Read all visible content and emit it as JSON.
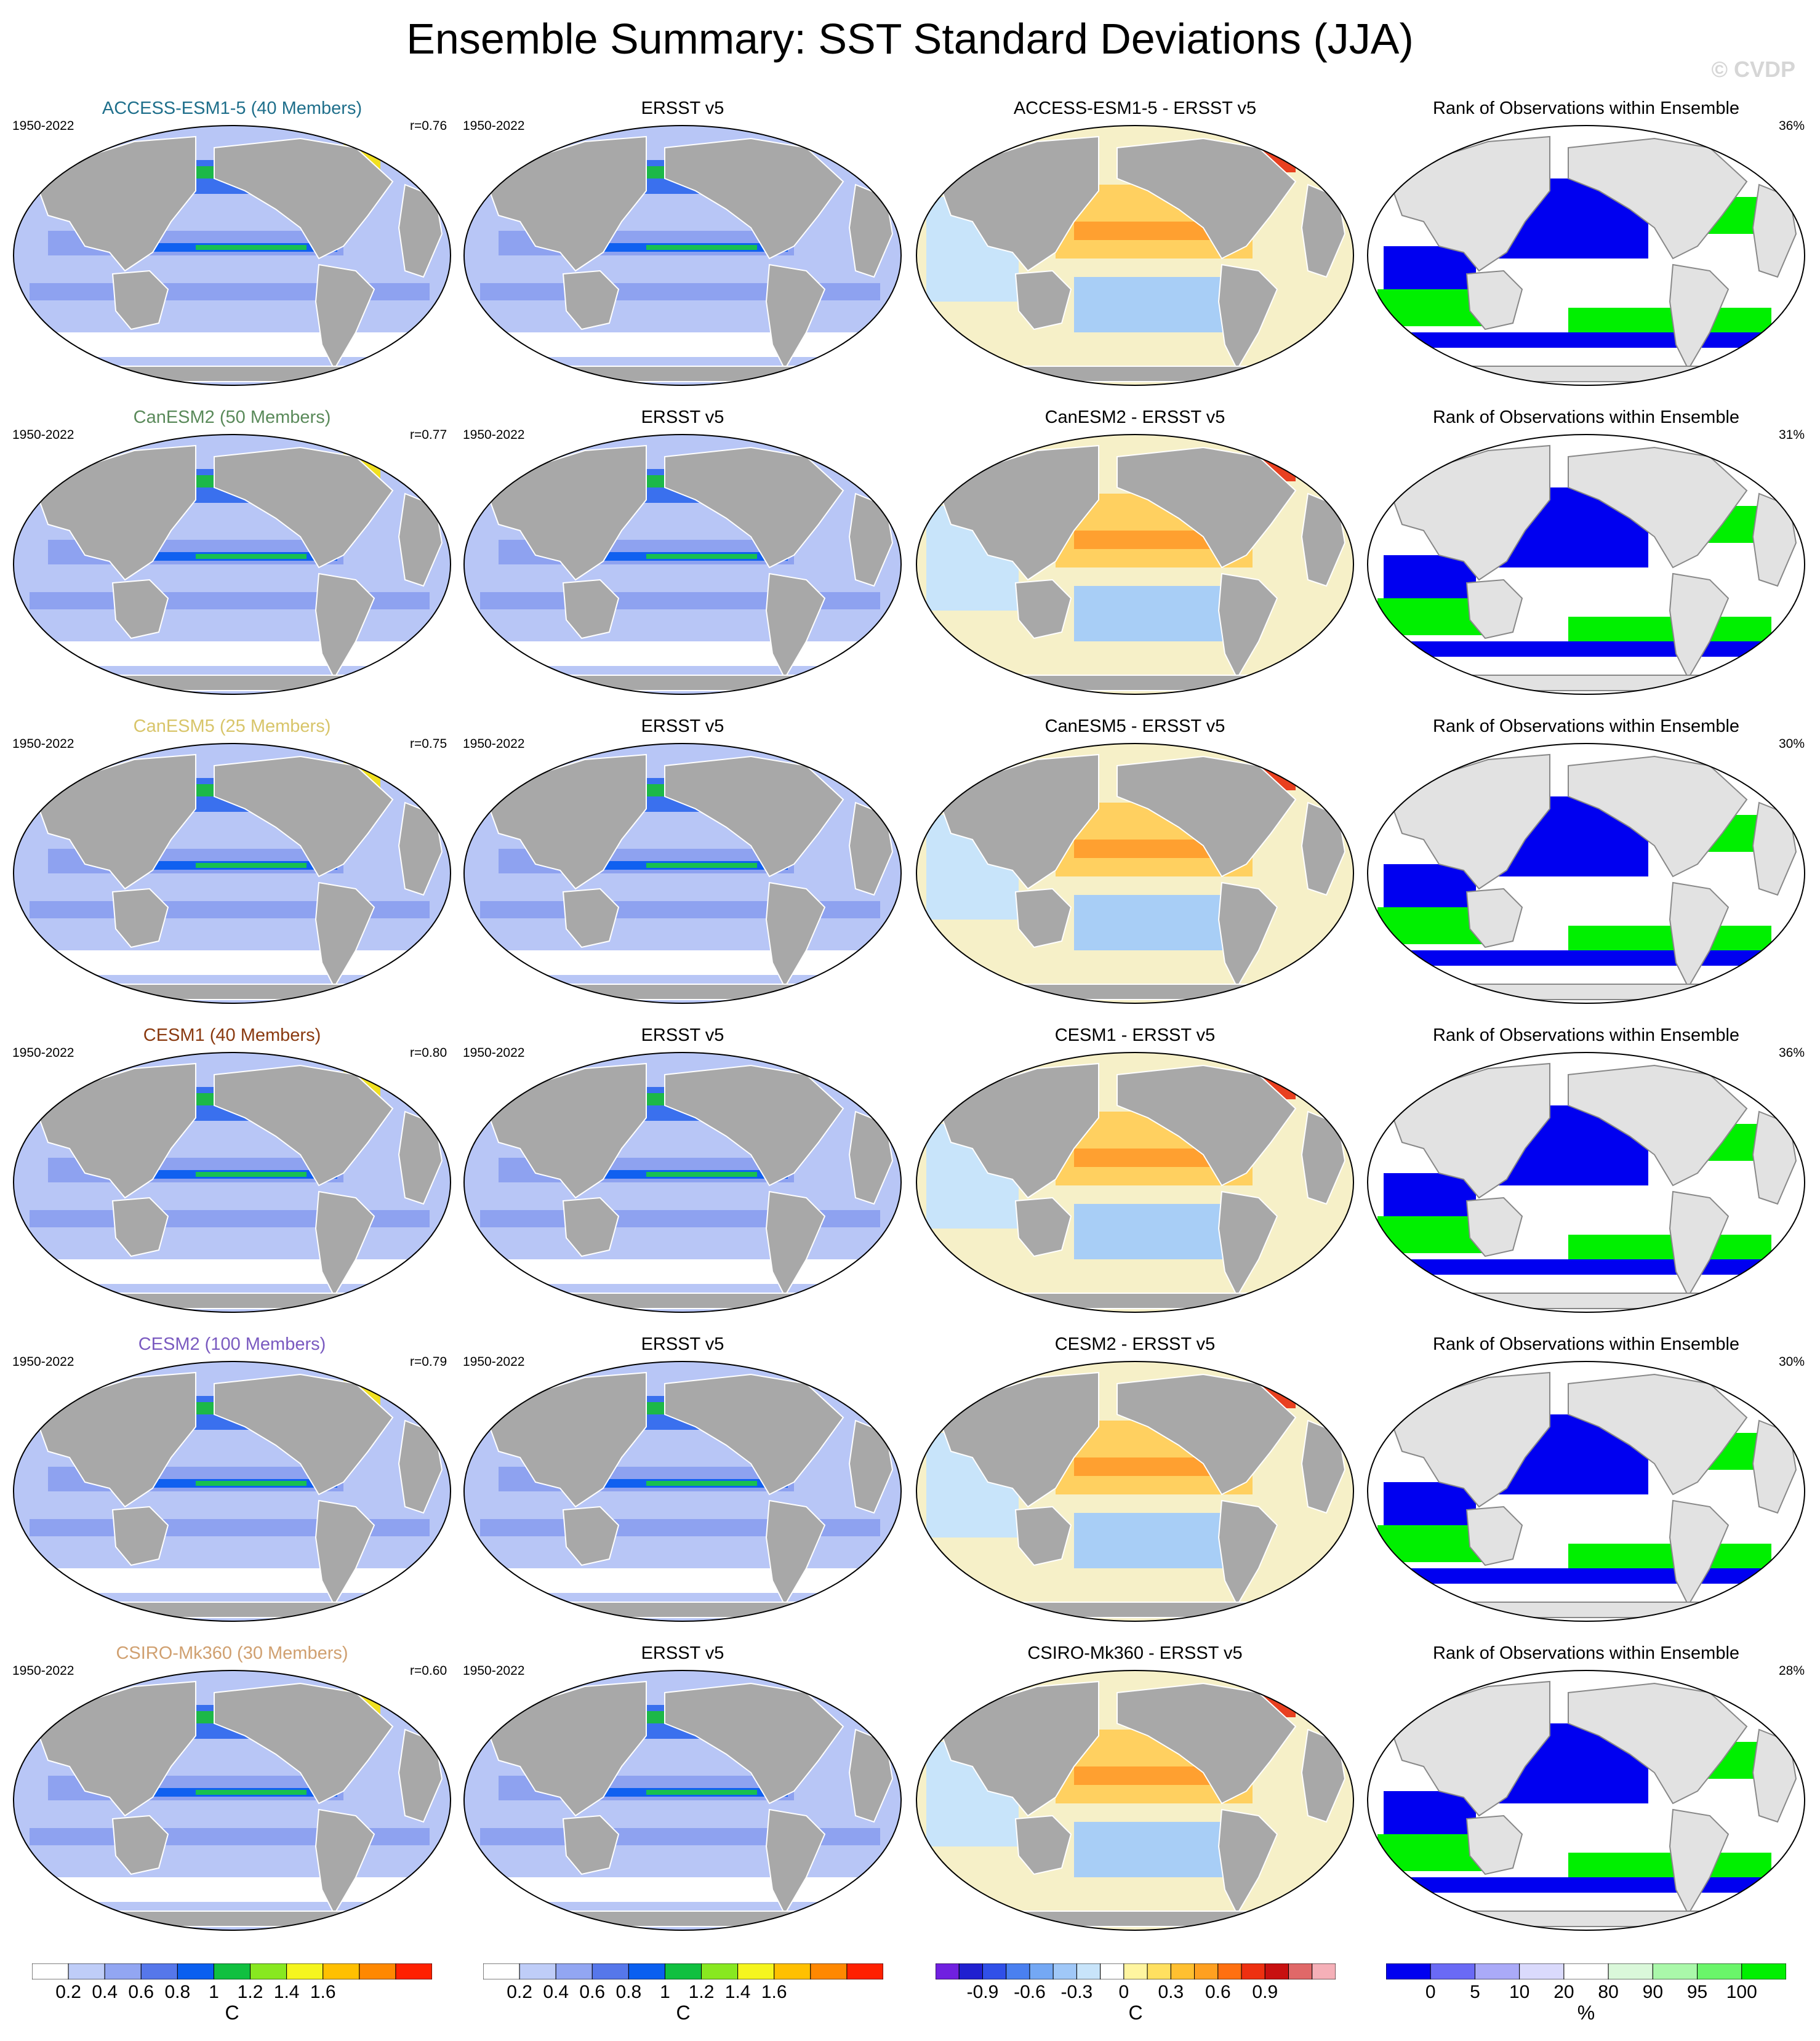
{
  "title": "Ensemble Summary: SST Standard Deviations (JJA)",
  "watermark": "© CVDP",
  "period": "1950-2022",
  "obs_name": "ERSST v5",
  "rank_title": "Rank of Observations within Ensemble",
  "rows": [
    {
      "model_title": "ACCESS-ESM1-5 (40 Members)",
      "model_color": "#1f6f8b",
      "corr": "r=0.76",
      "diff_title": "ACCESS-ESM1-5 - ERSST v5",
      "rank_pct": "36%"
    },
    {
      "model_title": "CanESM2 (50 Members)",
      "model_color": "#5a8a5a",
      "corr": "r=0.77",
      "diff_title": "CanESM2 - ERSST v5",
      "rank_pct": "31%"
    },
    {
      "model_title": "CanESM5 (25 Members)",
      "model_color": "#d8c56a",
      "corr": "r=0.75",
      "diff_title": "CanESM5 - ERSST v5",
      "rank_pct": "30%"
    },
    {
      "model_title": "CESM1 (40 Members)",
      "model_color": "#8a3a10",
      "corr": "r=0.80",
      "diff_title": "CESM1 - ERSST v5",
      "rank_pct": "36%"
    },
    {
      "model_title": "CESM2 (100 Members)",
      "model_color": "#7a5ac0",
      "corr": "r=0.79",
      "diff_title": "CESM2 - ERSST v5",
      "rank_pct": "30%"
    },
    {
      "model_title": "CSIRO-Mk360 (30 Members)",
      "model_color": "#d0a070",
      "corr": "r=0.60",
      "diff_title": "CSIRO-Mk360 - ERSST v5",
      "rank_pct": "28%"
    }
  ],
  "colorbars": {
    "sd": {
      "colors": [
        "#ffffff",
        "#bfcdf8",
        "#92a6f2",
        "#5677ea",
        "#0a5ff0",
        "#10c040",
        "#88e820",
        "#f5f51e",
        "#ffc000",
        "#ff8800",
        "#ff2000"
      ],
      "labels": [
        "0.2",
        "0.4",
        "0.6",
        "0.8",
        "1",
        "1.2",
        "1.4",
        "1.6"
      ],
      "unit": "C"
    },
    "diff": {
      "colors": [
        "#7020e0",
        "#2020d0",
        "#3050e8",
        "#4a80f0",
        "#74a8f4",
        "#a0c8f8",
        "#c8e4fa",
        "#ffffff",
        "#fff5a0",
        "#ffe060",
        "#ffc030",
        "#ffa020",
        "#ff7010",
        "#ee3010",
        "#c81010",
        "#e06868",
        "#f5b0b8"
      ],
      "labels": [
        "-0.9",
        "-0.6",
        "-0.3",
        "0",
        "0.3",
        "0.6",
        "0.9"
      ],
      "unit": "C"
    },
    "rank": {
      "colors": [
        "#0000f0",
        "#6a6af5",
        "#aaaaf8",
        "#dadafc",
        "#ffffff",
        "#daf8da",
        "#aaf8aa",
        "#6af56a",
        "#00f000"
      ],
      "labels": [
        "0",
        "5",
        "10",
        "20",
        "80",
        "90",
        "95",
        "100"
      ],
      "unit": "%"
    }
  }
}
